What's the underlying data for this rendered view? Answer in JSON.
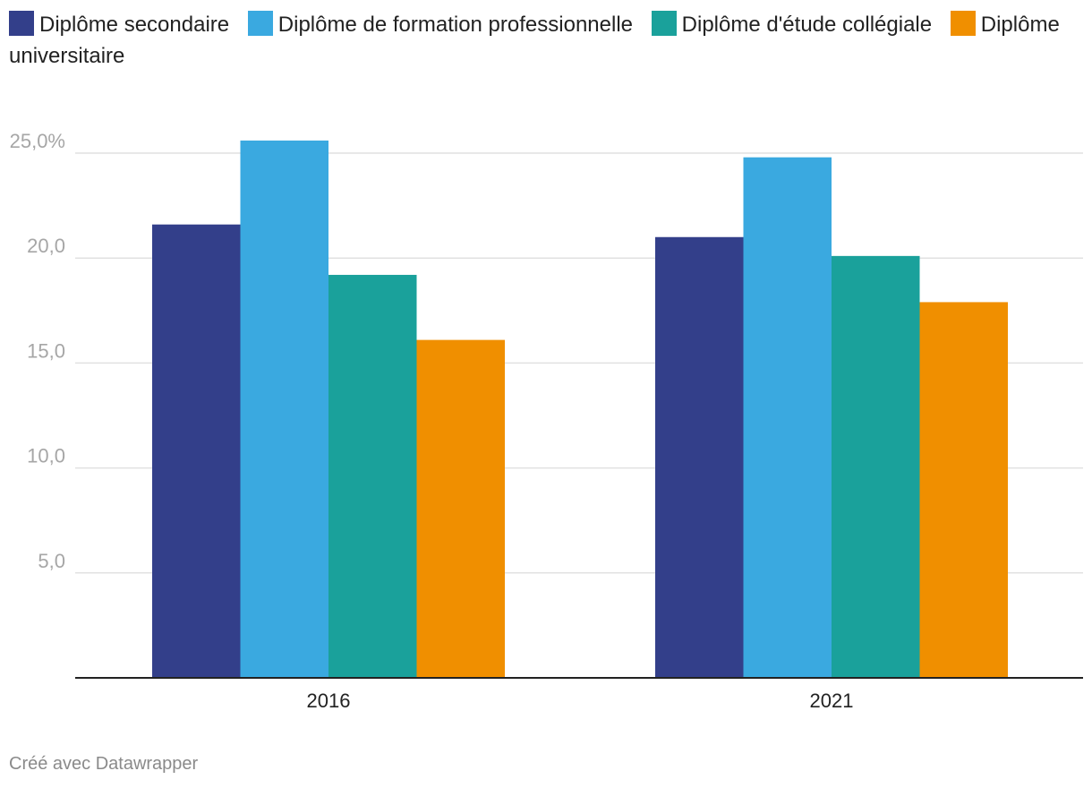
{
  "chart_data": {
    "type": "bar",
    "categories": [
      "2016",
      "2021"
    ],
    "series": [
      {
        "name": "Diplôme secondaire",
        "color": "#333f8a",
        "values": [
          21.6,
          21.0
        ]
      },
      {
        "name": "Diplôme de formation professionnelle",
        "color": "#3aa9e0",
        "values": [
          25.6,
          24.8
        ]
      },
      {
        "name": "Diplôme d'étude collégiale",
        "color": "#1aa19b",
        "values": [
          19.2,
          20.1
        ]
      },
      {
        "name": "Diplôme universitaire",
        "color": "#f08f00",
        "values": [
          16.1,
          17.9
        ]
      }
    ],
    "ylim": [
      0,
      25.9
    ],
    "yticks": [
      {
        "value": 5,
        "label": "5,0"
      },
      {
        "value": 10,
        "label": "10,0"
      },
      {
        "value": 15,
        "label": "15,0"
      },
      {
        "value": 20,
        "label": "20,0"
      },
      {
        "value": 25,
        "label": "25,0%"
      }
    ],
    "grid": true,
    "legend_position": "top"
  },
  "credit": "Créé avec Datawrapper"
}
